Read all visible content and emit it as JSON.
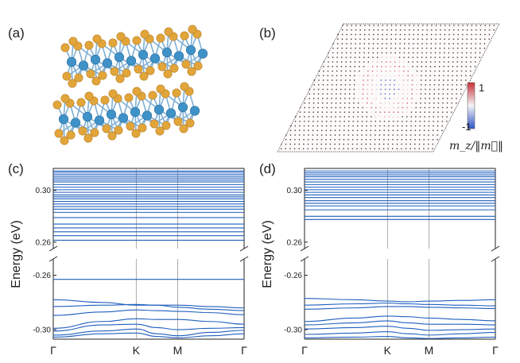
{
  "panels": {
    "a": {
      "label": "(a)"
    },
    "b": {
      "label": "(b)"
    },
    "c": {
      "label": "(c)"
    },
    "d": {
      "label": "(d)"
    }
  },
  "colorbar": {
    "max_label": "1",
    "min_label": "-1",
    "title": "m_z/‖m⃗‖",
    "color_high": "#c8323a",
    "color_mid": "#f4f4f4",
    "color_low": "#2f55c8"
  },
  "structure_colors": {
    "S": "#e2a53a",
    "W": "#3f92c8",
    "bond": "#7fb0d6"
  },
  "chart_data": [
    {
      "type": "line",
      "panel": "(c)",
      "ylabel": "Energy (eV)",
      "xticks": [
        "Γ",
        "K",
        "M",
        "Γ"
      ],
      "xticks_pos": [
        0,
        1,
        1.5,
        2.3
      ],
      "broken_y_axis": true,
      "upper_ylim": [
        0.255,
        0.317
      ],
      "lower_ylim": [
        -0.307,
        -0.248
      ],
      "upper_yticks": [
        "0.30",
        "0.26"
      ],
      "lower_yticks": [
        "-0.26",
        "-0.30"
      ],
      "line_color": "#1f5fbf",
      "upper_bands": [
        0.2615,
        0.265,
        0.268,
        0.271,
        0.274,
        0.279,
        0.283,
        0.2855,
        0.2875,
        0.2895,
        0.2915,
        0.2935,
        0.295,
        0.2965,
        0.2985,
        0.3005,
        0.3025,
        0.3045,
        0.3065,
        0.308,
        0.3095,
        0.311,
        0.3125,
        0.314,
        0.315
      ],
      "lower_bands": [
        {
          "x": [
            0,
            0.6,
            1.0,
            1.25,
            1.5,
            1.9,
            2.3
          ],
          "y": [
            -0.263,
            -0.263,
            -0.263,
            -0.263,
            -0.263,
            -0.263,
            -0.263
          ]
        },
        {
          "x": [
            0,
            0.6,
            1.0,
            1.25,
            1.5,
            1.9,
            2.3
          ],
          "y": [
            -0.278,
            -0.28,
            -0.282,
            -0.282,
            -0.282,
            -0.283,
            -0.284
          ]
        },
        {
          "x": [
            0,
            0.6,
            1.0,
            1.25,
            1.5,
            1.9,
            2.3
          ],
          "y": [
            -0.283,
            -0.282,
            -0.2815,
            -0.282,
            -0.2835,
            -0.285,
            -0.286
          ]
        },
        {
          "x": [
            0,
            0.6,
            1.0,
            1.25,
            1.5,
            1.9,
            2.3
          ],
          "y": [
            -0.2895,
            -0.287,
            -0.2855,
            -0.286,
            -0.2865,
            -0.2875,
            -0.289
          ]
        },
        {
          "x": [
            0,
            0.6,
            1.0,
            1.25,
            1.5,
            1.9,
            2.3
          ],
          "y": [
            -0.299,
            -0.294,
            -0.292,
            -0.2925,
            -0.2925,
            -0.294,
            -0.296
          ]
        },
        {
          "x": [
            0,
            0.6,
            1.0,
            1.25,
            1.5,
            1.9,
            2.3
          ],
          "y": [
            -0.301,
            -0.2965,
            -0.296,
            -0.2985,
            -0.3,
            -0.299,
            -0.2985
          ]
        },
        {
          "x": [
            0,
            0.6,
            1.0,
            1.25,
            1.5,
            1.9,
            2.3
          ],
          "y": [
            -0.304,
            -0.301,
            -0.2995,
            -0.303,
            -0.3045,
            -0.302,
            -0.3005
          ]
        },
        {
          "x": [
            0,
            0.6,
            1.0,
            1.25,
            1.5,
            1.9,
            2.3
          ],
          "y": [
            -0.3055,
            -0.303,
            -0.3025,
            -0.305,
            -0.306,
            -0.3045,
            -0.303
          ]
        }
      ]
    },
    {
      "type": "line",
      "panel": "(d)",
      "ylabel": "Energy (eV)",
      "xticks": [
        "Γ",
        "K",
        "M",
        "Γ"
      ],
      "xticks_pos": [
        0,
        1,
        1.5,
        2.3
      ],
      "broken_y_axis": true,
      "upper_ylim": [
        0.255,
        0.317
      ],
      "lower_ylim": [
        -0.307,
        -0.248
      ],
      "upper_yticks": [
        "0.30",
        "0.26"
      ],
      "lower_yticks": [
        "-0.26",
        "-0.30"
      ],
      "line_color": "#1f5fbf",
      "upper_bands": [
        0.2775,
        0.28,
        0.285,
        0.288,
        0.29,
        0.292,
        0.2945,
        0.2965,
        0.2985,
        0.3005,
        0.3025,
        0.3045,
        0.3065,
        0.3085,
        0.3105,
        0.312,
        0.3135,
        0.315
      ],
      "lower_bands": [
        {
          "x": [
            0,
            0.6,
            1.0,
            1.25,
            1.5,
            1.9,
            2.3
          ],
          "y": [
            -0.277,
            -0.278,
            -0.279,
            -0.2795,
            -0.279,
            -0.2785,
            -0.278
          ]
        },
        {
          "x": [
            0,
            0.6,
            1.0,
            1.25,
            1.5,
            1.9,
            2.3
          ],
          "y": [
            -0.282,
            -0.281,
            -0.2805,
            -0.281,
            -0.2815,
            -0.282,
            -0.2825
          ]
        },
        {
          "x": [
            0,
            0.6,
            1.0,
            1.25,
            1.5,
            1.9,
            2.3
          ],
          "y": [
            -0.285,
            -0.284,
            -0.283,
            -0.283,
            -0.2835,
            -0.284,
            -0.2845
          ]
        },
        {
          "x": [
            0,
            0.6,
            1.0,
            1.25,
            1.5,
            1.9,
            2.3
          ],
          "y": [
            -0.294,
            -0.2915,
            -0.29,
            -0.2905,
            -0.2915,
            -0.2925,
            -0.2935
          ]
        },
        {
          "x": [
            0,
            0.6,
            1.0,
            1.25,
            1.5,
            1.9,
            2.3
          ],
          "y": [
            -0.2965,
            -0.295,
            -0.2935,
            -0.295,
            -0.296,
            -0.296,
            -0.2965
          ]
        },
        {
          "x": [
            0,
            0.6,
            1.0,
            1.25,
            1.5,
            1.9,
            2.3
          ],
          "y": [
            -0.2995,
            -0.2985,
            -0.2975,
            -0.299,
            -0.3005,
            -0.3,
            -0.2995
          ]
        },
        {
          "x": [
            0,
            0.6,
            1.0,
            1.25,
            1.5,
            1.9,
            2.3
          ],
          "y": [
            -0.3035,
            -0.3025,
            -0.3015,
            -0.303,
            -0.304,
            -0.303,
            -0.302
          ]
        },
        {
          "x": [
            0,
            0.6,
            1.0,
            1.25,
            1.5,
            1.9,
            2.3
          ],
          "y": [
            -0.306,
            -0.3055,
            -0.305,
            -0.306,
            -0.3065,
            -0.306,
            -0.3055
          ]
        }
      ]
    }
  ]
}
